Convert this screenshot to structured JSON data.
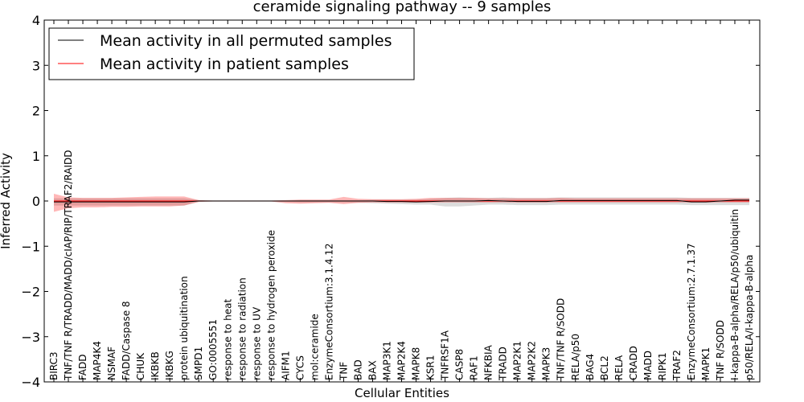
{
  "chart_data": {
    "type": "line",
    "title": "ceramide signaling pathway -- 9 samples",
    "xlabel": "Cellular Entities",
    "ylabel": "Inferred Activity",
    "ylim": [
      -4,
      4
    ],
    "yticks": [
      4,
      3,
      2,
      1,
      0,
      -1,
      -2,
      -3,
      -4
    ],
    "ytick_labels": [
      "4",
      "3",
      "2",
      "1",
      "0",
      "−1",
      "−2",
      "−3",
      "−4"
    ],
    "legend": {
      "placement": "top-left",
      "entries": [
        {
          "label": "Mean activity in all permuted samples",
          "color": "#000000"
        },
        {
          "label": "Mean activity in patient samples",
          "color": "#ff0000"
        }
      ]
    },
    "categories": [
      "BIRC3",
      "TNF/TNF R/TRADD/MADD/cIAP/RIP/TRAF2/RAIDD",
      "FADD",
      "MAP4K4",
      "NSMAF",
      "FADD/Caspase 8",
      "CHUK",
      "IKBKB",
      "IKBKG",
      "protein ubiquitination",
      "SMPD1",
      "GO:0005551",
      "response to heat",
      "response to radiation",
      "response to UV",
      "response to hydrogen peroxide",
      "AIFM1",
      "CYCS",
      "mol:ceramide",
      "EnzymeConsortium:3.1.4.12",
      "TNF",
      "BAD",
      "BAX",
      "MAP3K1",
      "MAP2K4",
      "MAPK8",
      "KSR1",
      "TNFRSF1A",
      "CASP8",
      "RAF1",
      "NFKBIA",
      "TRADD",
      "MAP2K1",
      "MAP2K2",
      "MAPK3",
      "TNF/TNF R/SODD",
      "RELA/p50",
      "BAG4",
      "BCL2",
      "RELA",
      "CRADD",
      "MADD",
      "RIPK1",
      "TRAF2",
      "EnzymeConsortium:2.7.1.37",
      "MAPK1",
      "TNF R/SODD",
      "I-kappa-B-alpha/RELA/p50/ubiquitin",
      "p50/RELA/I-kappa-B-alpha"
    ],
    "series": [
      {
        "name": "Mean activity in all permuted samples",
        "color": "#000000",
        "values": [
          -0.02,
          -0.02,
          -0.02,
          -0.02,
          -0.02,
          -0.02,
          -0.02,
          -0.02,
          -0.02,
          -0.02,
          0,
          0,
          0,
          0,
          0,
          0,
          0,
          0,
          0,
          0,
          0,
          0,
          0,
          -0.01,
          -0.01,
          -0.02,
          -0.01,
          0,
          0,
          0,
          0.01,
          0,
          -0.01,
          -0.01,
          -0.01,
          0.01,
          0.01,
          0.01,
          0.01,
          0.01,
          0.01,
          0.01,
          0.01,
          0.01,
          -0.02,
          -0.02,
          0,
          0.02,
          0.02
        ],
        "band_upper": [
          0.06,
          0.06,
          0.06,
          0.06,
          0.06,
          0.06,
          0.06,
          0.06,
          0.06,
          0.06,
          0.02,
          0.01,
          0.01,
          0.01,
          0.01,
          0.01,
          0.01,
          0.02,
          0.02,
          0.02,
          0.02,
          0.02,
          0.03,
          0.03,
          0.03,
          0.03,
          0.05,
          0.07,
          0.08,
          0.07,
          0.07,
          0.08,
          0.07,
          0.07,
          0.07,
          0.08,
          0.08,
          0.08,
          0.08,
          0.08,
          0.08,
          0.08,
          0.08,
          0.08,
          0.07,
          0.07,
          0.07,
          0.07,
          0.07
        ],
        "band_lower": [
          -0.1,
          -0.1,
          -0.1,
          -0.1,
          -0.1,
          -0.1,
          -0.1,
          -0.1,
          -0.1,
          -0.1,
          -0.02,
          -0.01,
          -0.01,
          -0.01,
          -0.01,
          -0.01,
          -0.02,
          -0.03,
          -0.03,
          -0.03,
          -0.03,
          -0.04,
          -0.05,
          -0.06,
          -0.07,
          -0.08,
          -0.08,
          -0.12,
          -0.12,
          -0.1,
          -0.08,
          -0.08,
          -0.09,
          -0.09,
          -0.09,
          -0.08,
          -0.08,
          -0.08,
          -0.08,
          -0.08,
          -0.08,
          -0.08,
          -0.08,
          -0.08,
          -0.09,
          -0.09,
          -0.09,
          -0.09,
          -0.09
        ]
      },
      {
        "name": "Mean activity in patient samples",
        "color": "#ff0000",
        "values": [
          0,
          0,
          0,
          0,
          0,
          0,
          0,
          0,
          0,
          0,
          0,
          0,
          0,
          0,
          0,
          0,
          0,
          0,
          0,
          0,
          0,
          0,
          0,
          0,
          0,
          0,
          0,
          0,
          0,
          0,
          0,
          0,
          0,
          0,
          0,
          0,
          0,
          0,
          0,
          0,
          0,
          0,
          0,
          0,
          0,
          0,
          0,
          0,
          0
        ],
        "band_upper": [
          0.16,
          0.08,
          0.07,
          0.07,
          0.07,
          0.08,
          0.09,
          0.1,
          0.1,
          0.1,
          0.02,
          0.01,
          0.01,
          0.01,
          0.01,
          0.01,
          0.02,
          0.03,
          0.03,
          0.03,
          0.09,
          0.05,
          0.04,
          0.04,
          0.04,
          0.05,
          0.07,
          0.07,
          0.07,
          0.07,
          0.06,
          0.06,
          0.06,
          0.06,
          0.06,
          0.07,
          0.06,
          0.06,
          0.06,
          0.06,
          0.06,
          0.06,
          0.06,
          0.06,
          0.06,
          0.06,
          0.06,
          0.06,
          0.06
        ],
        "band_lower": [
          -0.24,
          -0.16,
          -0.14,
          -0.14,
          -0.13,
          -0.13,
          -0.12,
          -0.12,
          -0.12,
          -0.1,
          -0.02,
          -0.01,
          -0.01,
          -0.01,
          -0.01,
          -0.01,
          -0.05,
          -0.06,
          -0.05,
          -0.04,
          -0.07,
          -0.04,
          -0.03,
          -0.03,
          -0.03,
          -0.03,
          -0.03,
          -0.03,
          -0.03,
          -0.03,
          -0.03,
          -0.03,
          -0.03,
          -0.03,
          -0.03,
          -0.03,
          -0.03,
          -0.03,
          -0.03,
          -0.03,
          -0.03,
          -0.03,
          -0.03,
          -0.03,
          -0.03,
          -0.03,
          -0.03,
          -0.03,
          -0.03
        ]
      }
    ]
  }
}
